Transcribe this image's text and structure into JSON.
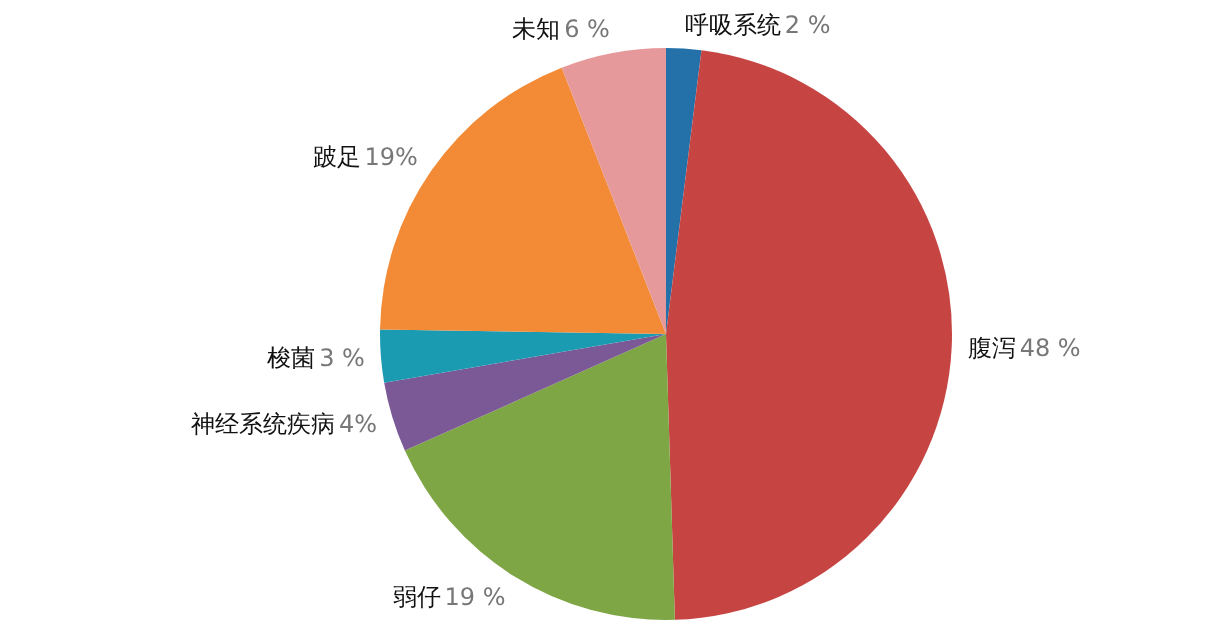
{
  "chart_data": {
    "type": "pie",
    "categories": [
      "呼吸系统",
      "腹泻",
      "弱仔",
      "神经系统疾病",
      "梭菌",
      "跛足",
      "未知"
    ],
    "values": [
      2,
      48,
      19,
      4,
      3,
      19,
      6
    ],
    "value_labels": [
      "2 %",
      "48 %",
      "19 %",
      "4%",
      "3 %",
      "19%",
      "6 %"
    ],
    "colors": [
      "#2470a8",
      "#c64543",
      "#7ea644",
      "#7b5996",
      "#1b9bb2",
      "#f28a36",
      "#e6999a"
    ]
  }
}
